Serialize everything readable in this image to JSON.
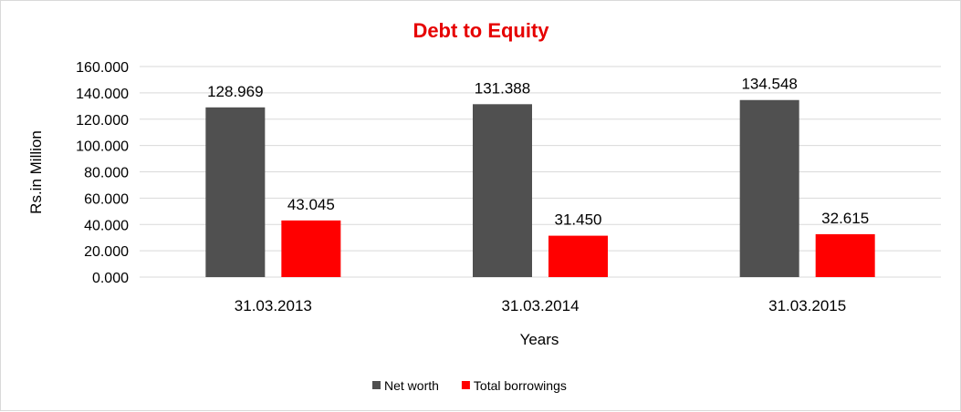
{
  "chart_data": {
    "type": "bar",
    "title": "Debt to Equity",
    "xlabel": "Years",
    "ylabel": "Rs.in Million",
    "categories": [
      "31.03.2013",
      "31.03.2014",
      "31.03.2015"
    ],
    "series": [
      {
        "name": "Net worth",
        "color": "#505050",
        "values": [
          128.969,
          131.388,
          134.548
        ],
        "labels": [
          "128.969",
          "131.388",
          "134.548"
        ]
      },
      {
        "name": "Total borrowings",
        "color": "#ff0000",
        "values": [
          43.045,
          31.45,
          32.615
        ],
        "labels": [
          "43.045",
          "31.450",
          "32.615"
        ]
      }
    ],
    "ylim": [
      0,
      160
    ],
    "yticks": [
      0,
      20,
      40,
      60,
      80,
      100,
      120,
      140,
      160
    ],
    "ytick_labels": [
      "0.000",
      "20.000",
      "40.000",
      "60.000",
      "80.000",
      "100.000",
      "120.000",
      "140.000",
      "160.000"
    ],
    "grid": true,
    "legend": "bottom",
    "title_color": "#e60000"
  }
}
